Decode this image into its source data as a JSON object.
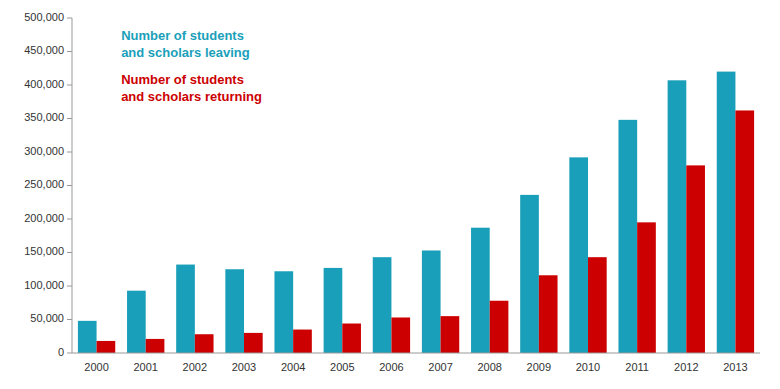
{
  "chart_data": {
    "type": "bar",
    "categories": [
      "2000",
      "2001",
      "2002",
      "2003",
      "2004",
      "2005",
      "2006",
      "2007",
      "2008",
      "2009",
      "2010",
      "2011",
      "2012",
      "2013"
    ],
    "series": [
      {
        "color": "#1a9fba",
        "values": [
          48000,
          93000,
          132000,
          125000,
          122000,
          127000,
          143000,
          153000,
          187000,
          236000,
          292000,
          348000,
          407000,
          420000
        ]
      },
      {
        "color": "#cc0000",
        "values": [
          18000,
          21000,
          28000,
          30000,
          35000,
          44000,
          53000,
          55000,
          78000,
          116000,
          143000,
          195000,
          280000,
          362000
        ]
      }
    ],
    "annotations": [
      {
        "text": "Number of students",
        "color": "#1a9fba"
      },
      {
        "text": "and scholars leaving",
        "color": "#1a9fba"
      },
      {
        "text": "Number of students",
        "color": "#cc0000"
      },
      {
        "text": "and scholars returning",
        "color": "#cc0000"
      }
    ],
    "ylim": [
      0,
      500000
    ],
    "yticks": [
      0,
      {
        "value": 50000,
        "label": "50,000"
      },
      {
        "value": 100000,
        "label": "100,000"
      },
      {
        "value": 150000,
        "label": "150,000"
      },
      {
        "value": 200000,
        "label": "200,000"
      },
      {
        "value": 250000,
        "label": "250,000"
      },
      {
        "value": 300000,
        "label": "300,000"
      },
      {
        "value": 350000,
        "label": "350,000"
      },
      {
        "value": 400000,
        "label": "400,000"
      },
      {
        "value": 450000,
        "label": "450,000"
      },
      {
        "value": 500000,
        "label": "500,000"
      }
    ],
    "grid": false
  }
}
